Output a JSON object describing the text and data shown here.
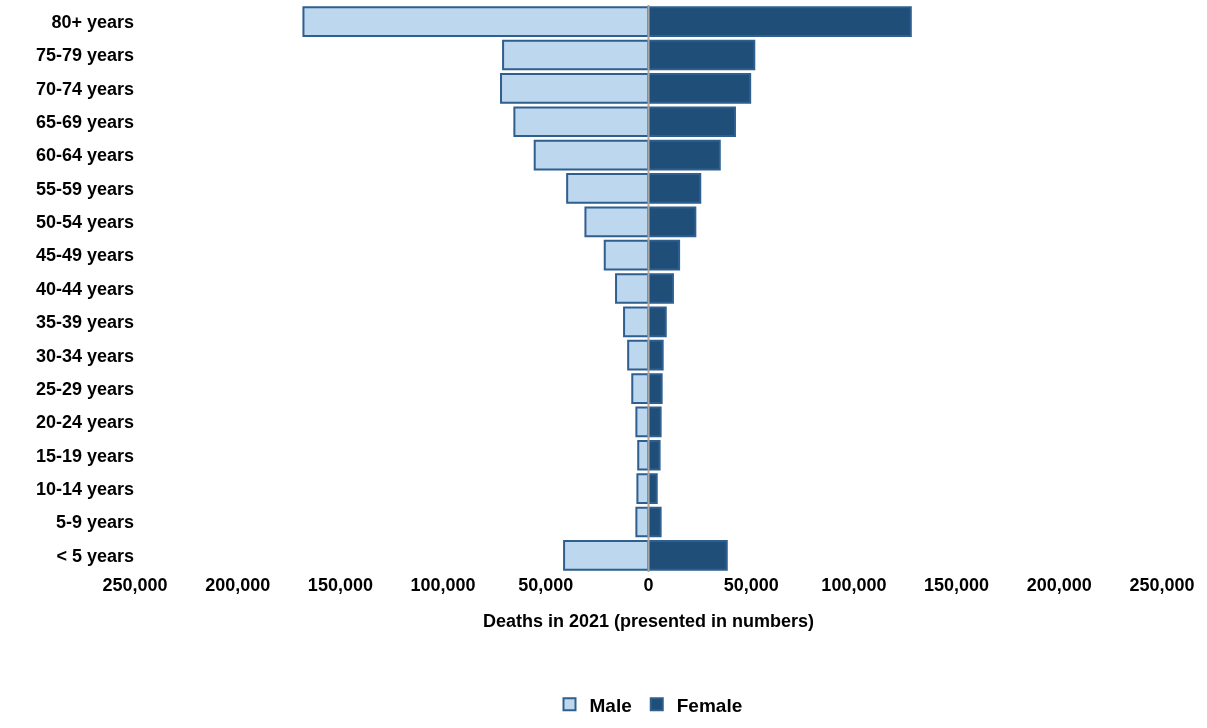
{
  "chart_data": {
    "type": "bar",
    "orientation": "horizontal",
    "xlabel": "Deaths in 2021 (presented in numbers)",
    "categories": [
      "80+ years",
      "75-79 years",
      "70-74 years",
      "65-69 years",
      "60-64 years",
      "55-59 years",
      "50-54 years",
      "45-49 years",
      "40-44 years",
      "35-39 years",
      "30-34 years",
      "25-29 years",
      "20-24 years",
      "15-19 years",
      "10-14 years",
      "5-9 years",
      "< 5 years"
    ],
    "series": [
      {
        "name": "Male",
        "color": "#bdd7ee",
        "values": [
          -168000,
          -70800,
          -71800,
          -65300,
          -55400,
          -39600,
          -30700,
          -21300,
          -15800,
          -11900,
          -9900,
          -7900,
          -5900,
          -5000,
          -5400,
          -5900,
          -41100
        ]
      },
      {
        "name": "Female",
        "color": "#1f4e79",
        "values": [
          127700,
          51500,
          49500,
          42100,
          34700,
          25200,
          22800,
          14900,
          11900,
          8400,
          6900,
          6400,
          5900,
          5400,
          4000,
          5900,
          38100
        ]
      }
    ],
    "xlim": [
      -250000,
      250000
    ],
    "xticks": [
      {
        "value": -250000,
        "label": "250,000"
      },
      {
        "value": -200000,
        "label": "200,000"
      },
      {
        "value": -150000,
        "label": "150,000"
      },
      {
        "value": -100000,
        "label": "100,000"
      },
      {
        "value": -50000,
        "label": "50,000"
      },
      0,
      {
        "value": 50000,
        "label": "50,000"
      },
      {
        "value": 100000,
        "label": "100,000"
      },
      {
        "value": 150000,
        "label": "150,000"
      },
      {
        "value": 200000,
        "label": "200,000"
      },
      {
        "value": 250000,
        "label": "250,000"
      }
    ],
    "ref_lines": [
      {
        "axis": "x",
        "value": 0,
        "color": "#a6a6a6"
      }
    ],
    "stacked": true,
    "grid": false,
    "legend": "bottom"
  }
}
